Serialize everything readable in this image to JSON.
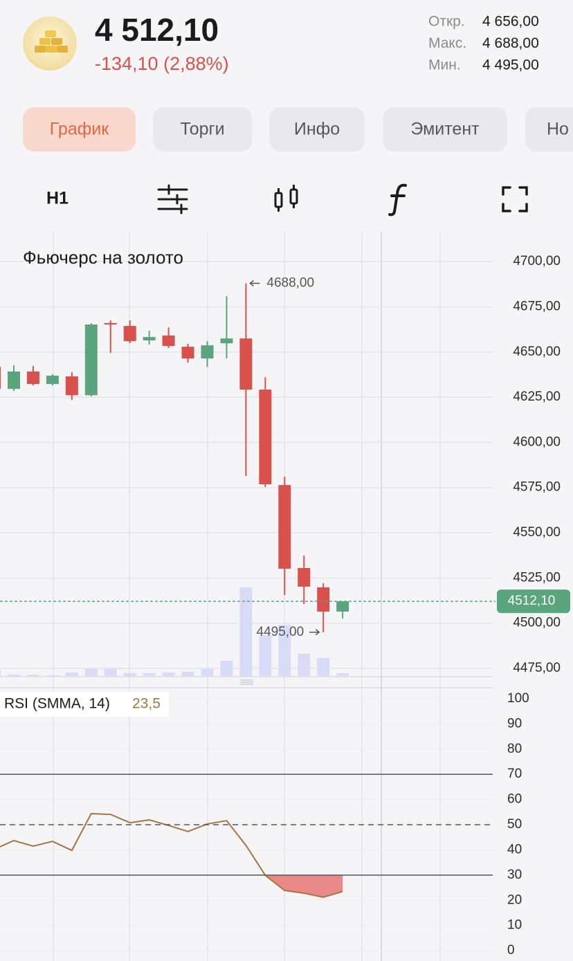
{
  "header": {
    "price": "4 512,10",
    "change": "-134,10 (2,88%)",
    "stats": [
      {
        "label": "Откр.",
        "value": "4 656,00"
      },
      {
        "label": "Макс.",
        "value": "4 688,00"
      },
      {
        "label": "Мин.",
        "value": "4 495,00"
      }
    ]
  },
  "tabs": [
    "График",
    "Торги",
    "Инфо",
    "Эмитент",
    "Но"
  ],
  "toolbar": {
    "interval": "H1"
  },
  "chart_data": [
    {
      "type": "candlestick",
      "title": "Фьючерс на золото",
      "open": [
        4641.8,
        4629.6,
        4639.2,
        4632.3,
        4636.5,
        4626.1,
        4666.0,
        4664.4,
        4656.4,
        4659.1,
        4652.9,
        4646.4,
        4654.8,
        4657.5,
        4629.2,
        4576.4,
        4530.5,
        4519.8,
        4506.4
      ],
      "high": [
        4643.5,
        4642.6,
        4642.2,
        4637.6,
        4638.8,
        4665.9,
        4667.5,
        4667.5,
        4661.7,
        4663.6,
        4654.5,
        4656.0,
        4680.9,
        4688.0,
        4636.1,
        4581.0,
        4537.4,
        4522.1,
        4512.1
      ],
      "low": [
        4628.0,
        4628.4,
        4631.5,
        4631.5,
        4623.5,
        4625.4,
        4649.5,
        4654.8,
        4654.1,
        4652.2,
        4644.1,
        4641.8,
        4646.4,
        4581.4,
        4575.3,
        4515.6,
        4510.6,
        4495.0,
        4502.6
      ],
      "close": [
        4629.6,
        4639.2,
        4632.3,
        4636.9,
        4626.1,
        4665.2,
        4665.5,
        4656.0,
        4658.3,
        4653.3,
        4646.4,
        4653.7,
        4657.5,
        4629.2,
        4576.8,
        4530.1,
        4520.2,
        4506.4,
        4512.1
      ],
      "volume": [
        8,
        2,
        2,
        1,
        5,
        10,
        10,
        4,
        4,
        5,
        6,
        10,
        22,
        128,
        59,
        74,
        32,
        26,
        4
      ],
      "up_color": "#5aa57d",
      "down_color": "#d8514c",
      "volume_color": "#d7dbf6",
      "ylim": [
        4470.8,
        4716.5
      ],
      "yticks": [
        {
          "value": 4475,
          "label": "4475,00"
        },
        {
          "value": 4500,
          "label": "4500,00"
        },
        {
          "value": 4525,
          "label": "4525,00"
        },
        {
          "value": 4550,
          "label": "4550,00"
        },
        {
          "value": 4575,
          "label": "4575,00"
        },
        {
          "value": 4600,
          "label": "4600,00"
        },
        {
          "value": 4625,
          "label": "4625,00"
        },
        {
          "value": 4650,
          "label": "4650,00"
        },
        {
          "value": 4675,
          "label": "4675,00"
        },
        {
          "value": 4700,
          "label": "4700,00"
        }
      ],
      "grid": true,
      "high_annotation": {
        "value": 4688.0,
        "label": "4688,00"
      },
      "low_annotation": {
        "value": 4495.0,
        "label": "4495,00"
      },
      "last_price": {
        "value": 4512.1,
        "label": "4512,10"
      }
    },
    {
      "type": "line",
      "title": "RSI (SMMA, 14)",
      "current": {
        "value": 23.5,
        "label": "23,5"
      },
      "values": [
        40.3,
        43.7,
        41.5,
        43.4,
        39.8,
        54.4,
        54.1,
        50.8,
        51.9,
        49.7,
        47.3,
        50.3,
        51.6,
        41.8,
        29.9,
        23.9,
        22.8,
        21.2,
        23.5
      ],
      "color": "#a6743e",
      "fill_color": "#e98a89",
      "ylim": [
        -4.1,
        104.1
      ],
      "yticks": [
        0,
        10,
        20,
        30,
        40,
        50,
        60,
        70,
        80,
        90,
        100
      ],
      "levels": [
        {
          "value": 70,
          "style": "solid"
        },
        {
          "value": 50,
          "style": "dashed"
        },
        {
          "value": 30,
          "style": "solid"
        }
      ]
    }
  ]
}
